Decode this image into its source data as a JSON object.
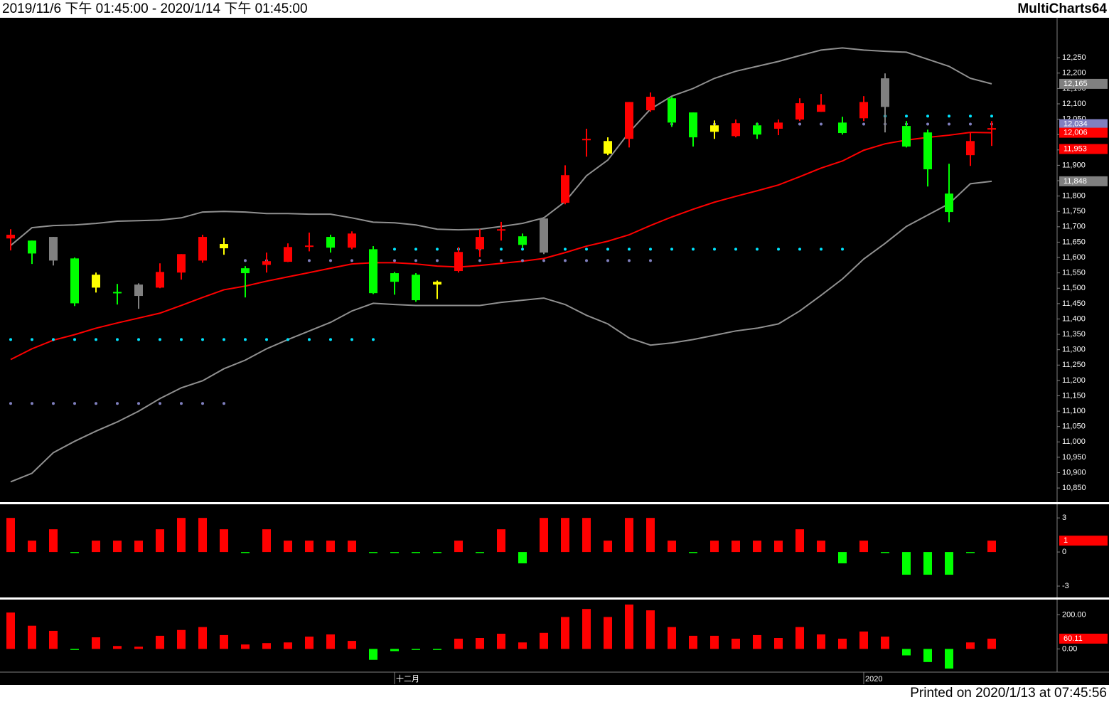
{
  "header": {
    "range": "2019/11/6 下午 01:45:00 - 2020/1/14 下午 01:45:00",
    "app": "MultiCharts64"
  },
  "footer": "Printed on 2020/1/13 at 07:45:56",
  "chart_data": [
    {
      "type": "candlestick",
      "categories": [
        null,
        null,
        null,
        null,
        null,
        null,
        null,
        null,
        null,
        null,
        null,
        null,
        null,
        null,
        null,
        null,
        null,
        null,
        "十二月",
        null,
        null,
        null,
        null,
        null,
        null,
        null,
        null,
        null,
        null,
        null,
        null,
        null,
        null,
        null,
        null,
        null,
        null,
        null,
        null,
        null,
        "2020",
        null,
        null,
        null,
        null,
        null,
        null
      ],
      "open": [
        11662,
        11655,
        11667,
        11597,
        11544,
        11488,
        11512,
        11502,
        11551,
        11590,
        11630,
        11565,
        11576,
        11586,
        11637,
        11667,
        11632,
        11627,
        11549,
        11544,
        11521,
        11556,
        11627,
        11690,
        11669,
        11727,
        11778,
        11983,
        11979,
        11986,
        12079,
        12118,
        12072,
        12030,
        11995,
        12030,
        12019,
        12049,
        12074,
        12039,
        12053,
        12183,
        12028,
        12007,
        11808,
        11933,
        12016
      ],
      "high": [
        11692,
        11655,
        11667,
        11600,
        11551,
        11514,
        11516,
        11581,
        11611,
        11674,
        11664,
        11572,
        11616,
        11646,
        11681,
        11674,
        11685,
        11637,
        11553,
        11549,
        11525,
        11634,
        11692,
        11716,
        11678,
        11732,
        11900,
        12019,
        11991,
        12106,
        12137,
        12123,
        12072,
        12046,
        12049,
        12039,
        12049,
        12118,
        12132,
        12058,
        12125,
        12199,
        12044,
        12016,
        11905,
        12007,
        12044
      ],
      "low": [
        11623,
        11579,
        11574,
        11442,
        11486,
        11447,
        11433,
        11500,
        11528,
        11583,
        11609,
        11470,
        11551,
        11586,
        11620,
        11616,
        11627,
        11481,
        11479,
        11456,
        11465,
        11551,
        11602,
        11655,
        11632,
        11611,
        11773,
        11928,
        11933,
        11958,
        12074,
        12025,
        11961,
        11986,
        11991,
        11986,
        11998,
        12044,
        12074,
        12000,
        12044,
        12007,
        11958,
        11831,
        11715,
        11898,
        11963
      ],
      "close": [
        11674,
        11613,
        11590,
        11451,
        11502,
        11486,
        11475,
        11553,
        11611,
        11667,
        11644,
        11549,
        11588,
        11634,
        11639,
        11632,
        11678,
        11484,
        11521,
        11461,
        11512,
        11618,
        11667,
        11692,
        11641,
        11616,
        11868,
        11986,
        11938,
        12106,
        12123,
        12039,
        11991,
        12009,
        12037,
        12000,
        12039,
        12102,
        12097,
        12005,
        12106,
        12090,
        11961,
        11887,
        11748,
        11979,
        12021
      ],
      "colors": [
        "#ff0000",
        "#00ff00",
        "#808080",
        "#00ff00",
        "#ffff00",
        "#00ff00",
        "#808080",
        "#ff0000",
        "#ff0000",
        "#ff0000",
        "#ffff00",
        "#00ff00",
        "#ff0000",
        "#ff0000",
        "#ff0000",
        "#00ff00",
        "#ff0000",
        "#00ff00",
        "#00ff00",
        "#00ff00",
        "#ffff00",
        "#ff0000",
        "#ff0000",
        "#ff0000",
        "#00ff00",
        "#808080",
        "#ff0000",
        "#ff0000",
        "#ffff00",
        "#ff0000",
        "#ff0000",
        "#00ff00",
        "#00ff00",
        "#ffff00",
        "#ff0000",
        "#00ff00",
        "#ff0000",
        "#ff0000",
        "#ff0000",
        "#00ff00",
        "#ff0000",
        "#808080",
        "#00ff00",
        "#00ff00",
        "#00ff00",
        "#ff0000",
        "#ff0000"
      ],
      "series": [
        {
          "style": "line",
          "color": "#909090",
          "values": [
            11639,
            11697,
            11704,
            11706,
            11711,
            11718,
            11720,
            11722,
            11729,
            11748,
            11750,
            11748,
            11743,
            11743,
            11741,
            11741,
            11729,
            11715,
            11713,
            11706,
            11692,
            11690,
            11692,
            11701,
            11711,
            11729,
            11782,
            11866,
            11917,
            12007,
            12083,
            12125,
            12150,
            12183,
            12206,
            12222,
            12238,
            12257,
            12275,
            12282,
            12275,
            12271,
            12268,
            12245,
            12222,
            12183,
            12165
          ]
        },
        {
          "style": "line",
          "color": "#ff0000",
          "values": [
            11268,
            11303,
            11331,
            11349,
            11370,
            11387,
            11403,
            11419,
            11444,
            11470,
            11495,
            11507,
            11523,
            11537,
            11551,
            11565,
            11579,
            11583,
            11583,
            11579,
            11572,
            11569,
            11574,
            11581,
            11588,
            11597,
            11616,
            11637,
            11653,
            11674,
            11704,
            11732,
            11757,
            11780,
            11799,
            11817,
            11836,
            11863,
            11891,
            11914,
            11949,
            11970,
            11982,
            11991,
            11998,
            12007,
            12006
          ]
        },
        {
          "style": "line",
          "color": "#909090",
          "values": [
            10870,
            10898,
            10965,
            11002,
            11035,
            11065,
            11100,
            11141,
            11176,
            11199,
            11238,
            11266,
            11303,
            11333,
            11361,
            11389,
            11426,
            11451,
            11447,
            11444,
            11444,
            11444,
            11444,
            11454,
            11461,
            11468,
            11447,
            11412,
            11384,
            11338,
            11315,
            11322,
            11333,
            11347,
            11361,
            11370,
            11384,
            11426,
            11477,
            11530,
            11595,
            11646,
            11701,
            11738,
            11775,
            11840,
            11848
          ]
        },
        {
          "style": "dots",
          "color": "#00e5ff",
          "values": [
            11333,
            11333,
            11333,
            11333,
            11333,
            11333,
            11333,
            11333,
            11333,
            11333,
            11333,
            11333,
            11333,
            11333,
            11333,
            11333,
            11333,
            11333,
            11627,
            11627,
            11627,
            11627,
            11627,
            11627,
            11627,
            11627,
            11627,
            11627,
            11627,
            11627,
            11627,
            11627,
            11627,
            11627,
            11627,
            11627,
            11627,
            11627,
            11627,
            11627,
            12060,
            12060,
            12060,
            12060,
            12060,
            12060,
            12060
          ]
        },
        {
          "style": "dots",
          "color": "#8080c0",
          "values": [
            11125,
            11125,
            11125,
            11125,
            11125,
            11125,
            11125,
            11125,
            11125,
            11125,
            11125,
            11590,
            11590,
            11590,
            11590,
            11590,
            11590,
            11590,
            11590,
            11590,
            11590,
            11590,
            11590,
            11590,
            11590,
            11590,
            11590,
            11590,
            11590,
            11590,
            11590,
            12034,
            12034,
            12034,
            12034,
            12034,
            12034,
            12034,
            12034,
            12034,
            12034,
            12034,
            12034,
            12034,
            12034,
            12034,
            12034
          ]
        }
      ],
      "markers": [
        {
          "value": 12165,
          "label": "12,165",
          "color": "#808080"
        },
        {
          "value": 12034,
          "label": "12,034",
          "color": "#8080c0"
        },
        {
          "value": 12006,
          "label": "12,006",
          "color": "#ff0000"
        },
        {
          "value": 11953,
          "label": "11,953",
          "color": "#ff0000"
        },
        {
          "value": 11848,
          "label": "11,848",
          "color": "#808080"
        }
      ],
      "ylim": [
        10804,
        12380
      ],
      "yticks": [
        {
          "value": 10850,
          "label": "10,850"
        },
        {
          "value": 10900,
          "label": "10,900"
        },
        {
          "value": 10950,
          "label": "10,950"
        },
        {
          "value": 11000,
          "label": "11,000"
        },
        {
          "value": 11050,
          "label": "11,050"
        },
        {
          "value": 11100,
          "label": "11,100"
        },
        {
          "value": 11150,
          "label": "11,150"
        },
        {
          "value": 11200,
          "label": "11,200"
        },
        {
          "value": 11250,
          "label": "11,250"
        },
        {
          "value": 11300,
          "label": "11,300"
        },
        {
          "value": 11350,
          "label": "11,350"
        },
        {
          "value": 11400,
          "label": "11,400"
        },
        {
          "value": 11450,
          "label": "11,450"
        },
        {
          "value": 11500,
          "label": "11,500"
        },
        {
          "value": 11550,
          "label": "11,550"
        },
        {
          "value": 11600,
          "label": "11,600"
        },
        {
          "value": 11650,
          "label": "11,650"
        },
        {
          "value": 11700,
          "label": "11,700"
        },
        {
          "value": 11750,
          "label": "11,750"
        },
        {
          "value": 11800,
          "label": "11,800"
        },
        {
          "value": 11850,
          "label": "11,850"
        },
        {
          "value": 11900,
          "label": "11,900"
        },
        {
          "value": 11950,
          "label": "11,950"
        },
        {
          "value": 12000,
          "label": "12,000"
        },
        {
          "value": 12050,
          "label": "12,050"
        },
        {
          "value": 12100,
          "label": "12,100"
        },
        {
          "value": 12150,
          "label": "12,150"
        },
        {
          "value": 12200,
          "label": "12,200"
        },
        {
          "value": 12250,
          "label": "12,250"
        }
      ]
    },
    {
      "type": "bar",
      "values": [
        3,
        1,
        2,
        0,
        1,
        1,
        1,
        2,
        3,
        3,
        2,
        0,
        2,
        1,
        1,
        1,
        1,
        0,
        0,
        0,
        0,
        1,
        0,
        2,
        -1,
        3,
        3,
        3,
        1,
        3,
        3,
        1,
        0,
        1,
        1,
        1,
        1,
        2,
        1,
        -1,
        1,
        0,
        -2,
        -2,
        -2,
        0,
        1
      ],
      "up_color": "#ff0000",
      "down_color": "#00ff00",
      "markers": [
        {
          "value": 1,
          "label": "1",
          "color": "#ff0000"
        }
      ],
      "ylim": [
        -4,
        4.2
      ],
      "yticks": [
        3,
        0,
        -3
      ]
    },
    {
      "type": "bar",
      "values": [
        213,
        136,
        106,
        0,
        68,
        17,
        13,
        77,
        111,
        128,
        81,
        26,
        34,
        38,
        72,
        85,
        47,
        -64,
        -13,
        -2,
        -4,
        60,
        64,
        89,
        38,
        94,
        187,
        234,
        187,
        260,
        226,
        128,
        77,
        77,
        60,
        81,
        64,
        128,
        85,
        60,
        102,
        72,
        -38,
        -77,
        -115,
        38,
        60.11
      ],
      "up_color": "#ff0000",
      "down_color": "#00ff00",
      "markers": [
        {
          "value": 60.11,
          "label": "60.11",
          "color": "#ff0000"
        }
      ],
      "ylim": [
        -136,
        289
      ],
      "yticks": [
        {
          "value": 200,
          "label": "200.00"
        },
        {
          "value": 0,
          "label": "0.00"
        }
      ]
    }
  ]
}
